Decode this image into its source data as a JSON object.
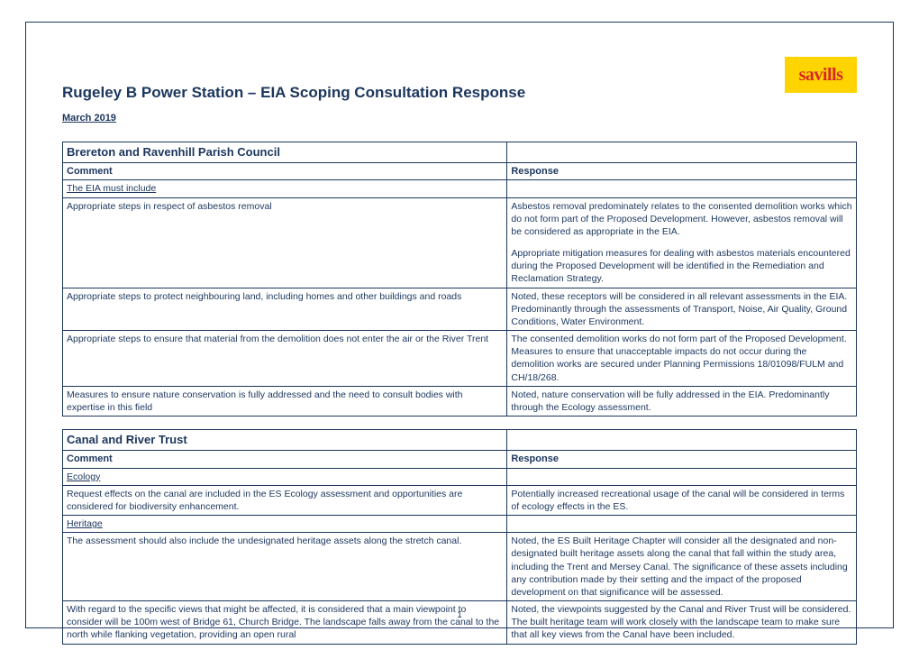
{
  "logo": {
    "text": "savills",
    "bg": "#ffd400",
    "color": "#d62828"
  },
  "title": "Rugeley B Power Station – EIA Scoping Consultation Response",
  "date": "March 2019",
  "colors": {
    "primary": "#1b365d"
  },
  "pageNumber": "1",
  "table1": {
    "sectionTitle": "Brereton and Ravenhill Parish Council",
    "headerComment": "Comment",
    "headerResponse": "Response",
    "subHeading": "The EIA must include",
    "rows": [
      {
        "comment": "Appropriate steps in respect of asbestos removal",
        "responseA": "Asbestos removal predominately relates to the consented demolition works which do not form part of the Proposed Development. However, asbestos removal will be considered as appropriate in the EIA.",
        "responseB": "Appropriate mitigation measures for dealing with asbestos materials encountered during the Proposed Development will be identified in the Remediation and Reclamation Strategy."
      },
      {
        "comment": "Appropriate steps to protect neighbouring land, including homes and other buildings and roads",
        "responseA": "Noted, these receptors will be considered in all relevant assessments in the EIA. Predominantly through the assessments of Transport, Noise, Air Quality, Ground Conditions, Water Environment."
      },
      {
        "comment": "Appropriate steps to ensure that material from the demolition does not enter the air or the River Trent",
        "responseA": "The consented demolition works do not form part of the Proposed Development. Measures to ensure that unacceptable impacts do not occur during the demolition works are secured under Planning Permissions 18/01098/FULM and CH/18/268."
      },
      {
        "comment": "Measures to ensure nature conservation is fully addressed and the need to consult bodies with expertise in this field",
        "responseA": "Noted, nature conservation will be fully addressed in the EIA. Predominantly through the Ecology assessment."
      }
    ]
  },
  "table2": {
    "sectionTitle": "Canal and River Trust",
    "headerComment": "Comment",
    "headerResponse": "Response",
    "subHeadingA": "Ecology",
    "subHeadingB": "Heritage",
    "rows": [
      {
        "comment": "Request effects on the canal are included in the ES Ecology assessment and opportunities are considered for biodiversity enhancement.",
        "responseA": "Potentially increased recreational usage of the canal will be considered in terms of ecology effects in the ES."
      },
      {
        "comment": "The assessment should also include the undesignated heritage assets along the stretch canal.",
        "responseA": "Noted, the ES Built Heritage Chapter will consider all the designated and non-designated built heritage assets along the canal that fall within the study area, including the Trent and Mersey Canal. The significance of these assets including any contribution made by their setting and the impact of the proposed development on that significance will be assessed."
      },
      {
        "comment": "With regard to the specific views that might be affected, it is considered that a main viewpoint to consider will be 100m west of Bridge 61, Church Bridge. The landscape falls away from the canal to the north while flanking vegetation, providing an open rural",
        "responseA": "Noted, the viewpoints suggested by the Canal and River Trust will be considered. The built heritage team will work closely with the landscape team to make sure that all key views from the Canal have been included."
      }
    ]
  }
}
